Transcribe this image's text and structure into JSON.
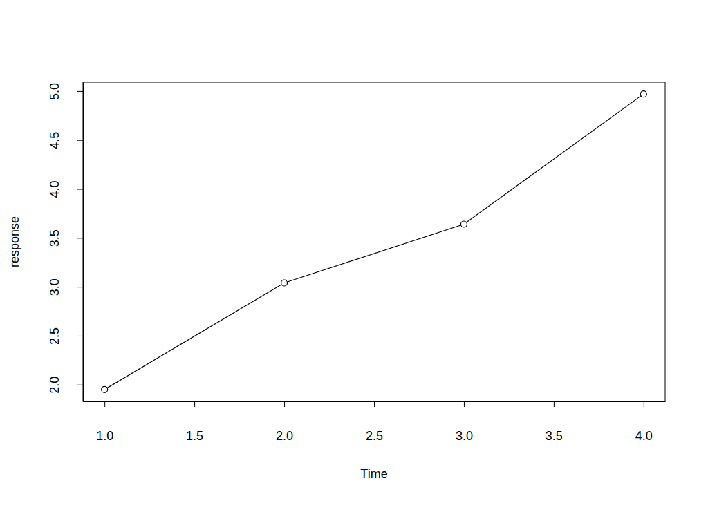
{
  "chart_data": {
    "type": "line",
    "x_label": "Time",
    "y_label": "response",
    "x": [
      1,
      2,
      3,
      4
    ],
    "values": [
      1.95,
      3.04,
      3.64,
      4.97
    ],
    "color": "#000000",
    "marker": "circle",
    "line_style": "solid",
    "xlim": [
      0.88,
      4.12
    ],
    "ylim": [
      1.829,
      5.091
    ],
    "xticks": [
      {
        "value": 1,
        "label": "1.0"
      },
      {
        "value": 1.5,
        "label": "1.5"
      },
      {
        "value": 2,
        "label": "2.0"
      },
      {
        "value": 2.5,
        "label": "2.5"
      },
      {
        "value": 3,
        "label": "3.0"
      },
      {
        "value": 3.5,
        "label": "3.5"
      },
      {
        "value": 4,
        "label": "4.0"
      }
    ],
    "yticks": [
      {
        "value": 2,
        "label": "2.0"
      },
      {
        "value": 2.5,
        "label": "2.5"
      },
      {
        "value": 3,
        "label": "3.0"
      },
      {
        "value": 3.5,
        "label": "3.5"
      },
      {
        "value": 4,
        "label": "4.0"
      },
      {
        "value": 4.5,
        "label": "4.5"
      },
      {
        "value": 5,
        "label": "5.0"
      }
    ],
    "grid": false
  }
}
